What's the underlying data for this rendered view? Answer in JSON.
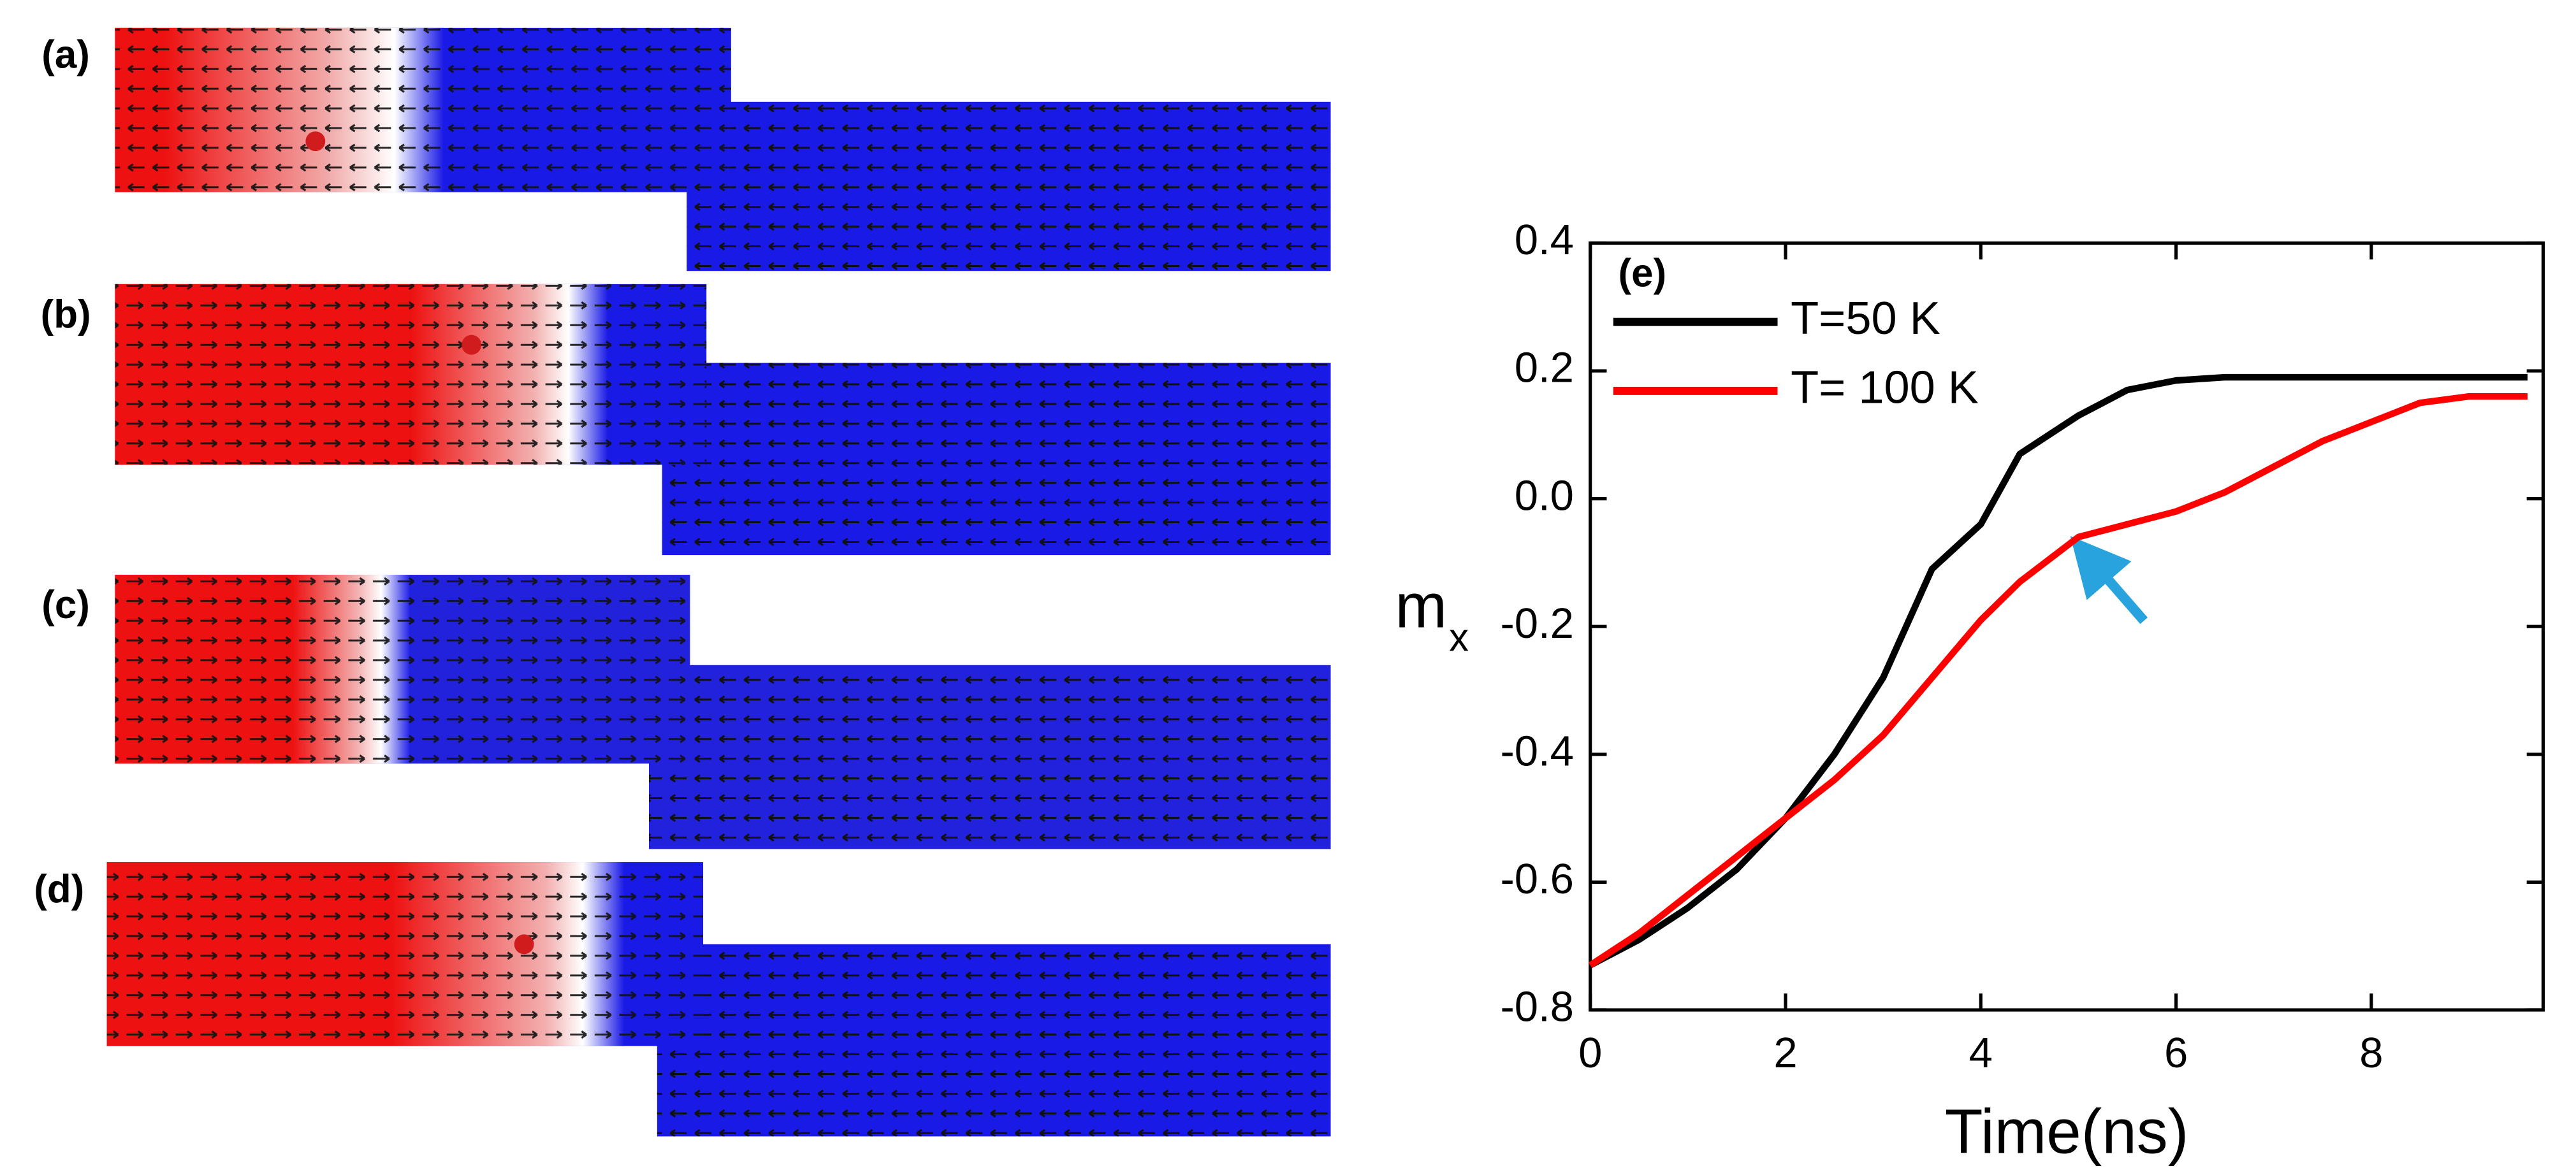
{
  "panels": [
    {
      "label": "(a)"
    },
    {
      "label": "(b)"
    },
    {
      "label": "(c)"
    },
    {
      "label": "(d)"
    }
  ],
  "chart_data": {
    "type": "line",
    "annotation": "(e)",
    "xlabel": "Time(ns)",
    "ylabel": "m",
    "ylabel_subscript": "x",
    "x": [
      0,
      0.5,
      1,
      1.5,
      2,
      2.5,
      3,
      3.5,
      4,
      4.4,
      5,
      5.5,
      6,
      6.5,
      7,
      7.5,
      8,
      8.5,
      9,
      9.6
    ],
    "series": [
      {
        "name": "T=50 K",
        "color": "#000000",
        "values": [
          -0.73,
          -0.69,
          -0.64,
          -0.58,
          -0.5,
          -0.4,
          -0.28,
          -0.11,
          -0.04,
          0.07,
          0.13,
          0.17,
          0.185,
          0.19,
          0.19,
          0.19,
          0.19,
          0.19,
          0.19,
          0.19
        ]
      },
      {
        "name": "T= 100 K",
        "color": "#ff0000",
        "values": [
          -0.73,
          -0.68,
          -0.62,
          -0.56,
          -0.5,
          -0.44,
          -0.37,
          -0.28,
          -0.19,
          -0.13,
          -0.06,
          -0.04,
          -0.02,
          0.01,
          0.05,
          0.09,
          0.12,
          0.15,
          0.16,
          0.16
        ]
      }
    ],
    "xlim": [
      0,
      9.76
    ],
    "ylim": [
      -0.8,
      0.4
    ],
    "xticks": [
      0,
      2,
      4,
      6,
      8
    ],
    "yticks": [
      -0.8,
      -0.6,
      -0.4,
      -0.2,
      {
        "value": 0,
        "label": "0.0"
      },
      0.2,
      0.4
    ],
    "legend": "upper-left"
  }
}
